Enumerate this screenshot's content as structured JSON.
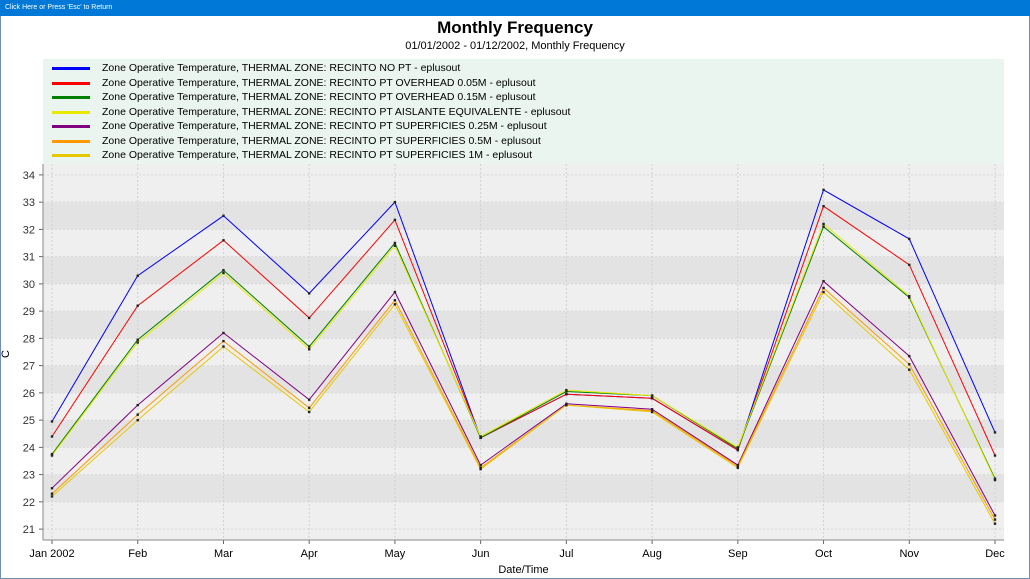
{
  "window": {
    "title_bar_text": "Click Here or Press 'Esc' to Return"
  },
  "chart_data": {
    "type": "line",
    "title": "Monthly Frequency",
    "subtitle": "01/01/2002 - 01/12/2002, Monthly Frequency",
    "xlabel": "Date/Time",
    "ylabel": "C",
    "categories": [
      "Jan 2002",
      "Feb",
      "Mar",
      "Apr",
      "May",
      "Jun",
      "Jul",
      "Aug",
      "Sep",
      "Oct",
      "Nov",
      "Dec"
    ],
    "ylim": [
      20.6,
      34.4
    ],
    "yticks": [
      21,
      22,
      23,
      24,
      25,
      26,
      27,
      28,
      29,
      30,
      31,
      32,
      33,
      34
    ],
    "grid": true,
    "legend_position": "top",
    "series": [
      {
        "name": "Zone Operative Temperature, THERMAL ZONE: RECINTO NO PT - eplusout",
        "color": "#0000ff",
        "values": [
          24.95,
          30.3,
          32.5,
          29.65,
          33.0,
          24.35,
          25.95,
          25.8,
          23.9,
          33.45,
          31.65,
          24.55
        ]
      },
      {
        "name": "Zone Operative Temperature, THERMAL ZONE: RECINTO PT OVERHEAD 0.05M - eplusout",
        "color": "#ff0000",
        "values": [
          24.4,
          29.2,
          31.6,
          28.75,
          32.35,
          24.35,
          25.95,
          25.8,
          23.9,
          32.85,
          30.7,
          23.7
        ]
      },
      {
        "name": "Zone Operative Temperature, THERMAL ZONE: RECINTO PT OVERHEAD 0.15M - eplusout",
        "color": "#008000",
        "values": [
          23.75,
          27.95,
          30.5,
          27.7,
          31.5,
          24.35,
          26.05,
          25.9,
          23.95,
          32.1,
          29.5,
          22.85
        ]
      },
      {
        "name": "Zone Operative Temperature, THERMAL ZONE: RECINTO PT AISLANTE EQUIVALENTE - eplusout",
        "color": "#e8e800",
        "values": [
          23.7,
          27.85,
          30.4,
          27.6,
          31.4,
          24.4,
          26.1,
          25.9,
          24.0,
          32.2,
          29.55,
          22.8
        ]
      },
      {
        "name": "Zone Operative Temperature, THERMAL ZONE: RECINTO PT SUPERFICIES 0.25M - eplusout",
        "color": "#800080",
        "values": [
          22.5,
          25.55,
          28.2,
          25.75,
          29.7,
          23.35,
          25.6,
          25.4,
          23.35,
          30.1,
          27.35,
          21.5
        ]
      },
      {
        "name": "Zone Operative Temperature, THERMAL ZONE: RECINTO PT SUPERFICIES 0.5M - eplusout",
        "color": "#ff9900",
        "values": [
          22.3,
          25.2,
          27.9,
          25.45,
          29.4,
          23.25,
          25.55,
          25.35,
          23.3,
          29.85,
          27.05,
          21.35
        ]
      },
      {
        "name": "Zone Operative Temperature, THERMAL ZONE: RECINTO PT SUPERFICIES 1M - eplusout",
        "color": "#e6c800",
        "values": [
          22.2,
          25.0,
          27.7,
          25.3,
          29.25,
          23.2,
          25.55,
          25.3,
          23.25,
          29.7,
          26.85,
          21.2
        ]
      }
    ]
  }
}
